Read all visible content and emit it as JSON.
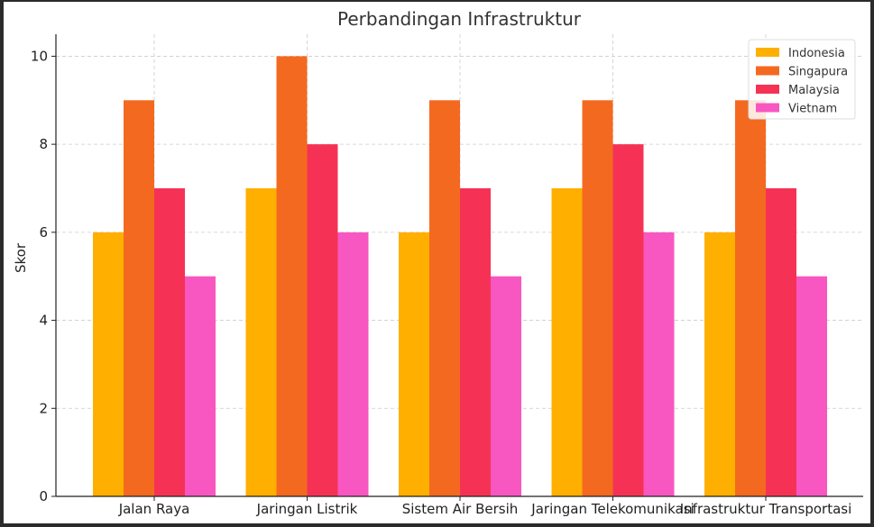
{
  "chart_data": {
    "type": "bar",
    "title": "Perbandingan Infrastruktur",
    "xlabel": "",
    "ylabel": "Skor",
    "ylim": [
      0,
      10.5
    ],
    "yticks": [
      0,
      2,
      4,
      6,
      8,
      10
    ],
    "grid": true,
    "legend_position": "top-right",
    "categories": [
      "Jalan Raya",
      "Jaringan Listrik",
      "Sistem Air Bersih",
      "Jaringan Telekomunikasi",
      "Infrastruktur Transportasi"
    ],
    "series": [
      {
        "name": "Indonesia",
        "color": "#FFAF00",
        "values": [
          6,
          7,
          6,
          7,
          6
        ]
      },
      {
        "name": "Singapura",
        "color": "#F46920",
        "values": [
          9,
          10,
          9,
          9,
          9
        ]
      },
      {
        "name": "Malaysia",
        "color": "#F53255",
        "values": [
          7,
          8,
          7,
          8,
          7
        ]
      },
      {
        "name": "Vietnam",
        "color": "#F857C1",
        "values": [
          5,
          6,
          5,
          6,
          5
        ]
      }
    ]
  }
}
